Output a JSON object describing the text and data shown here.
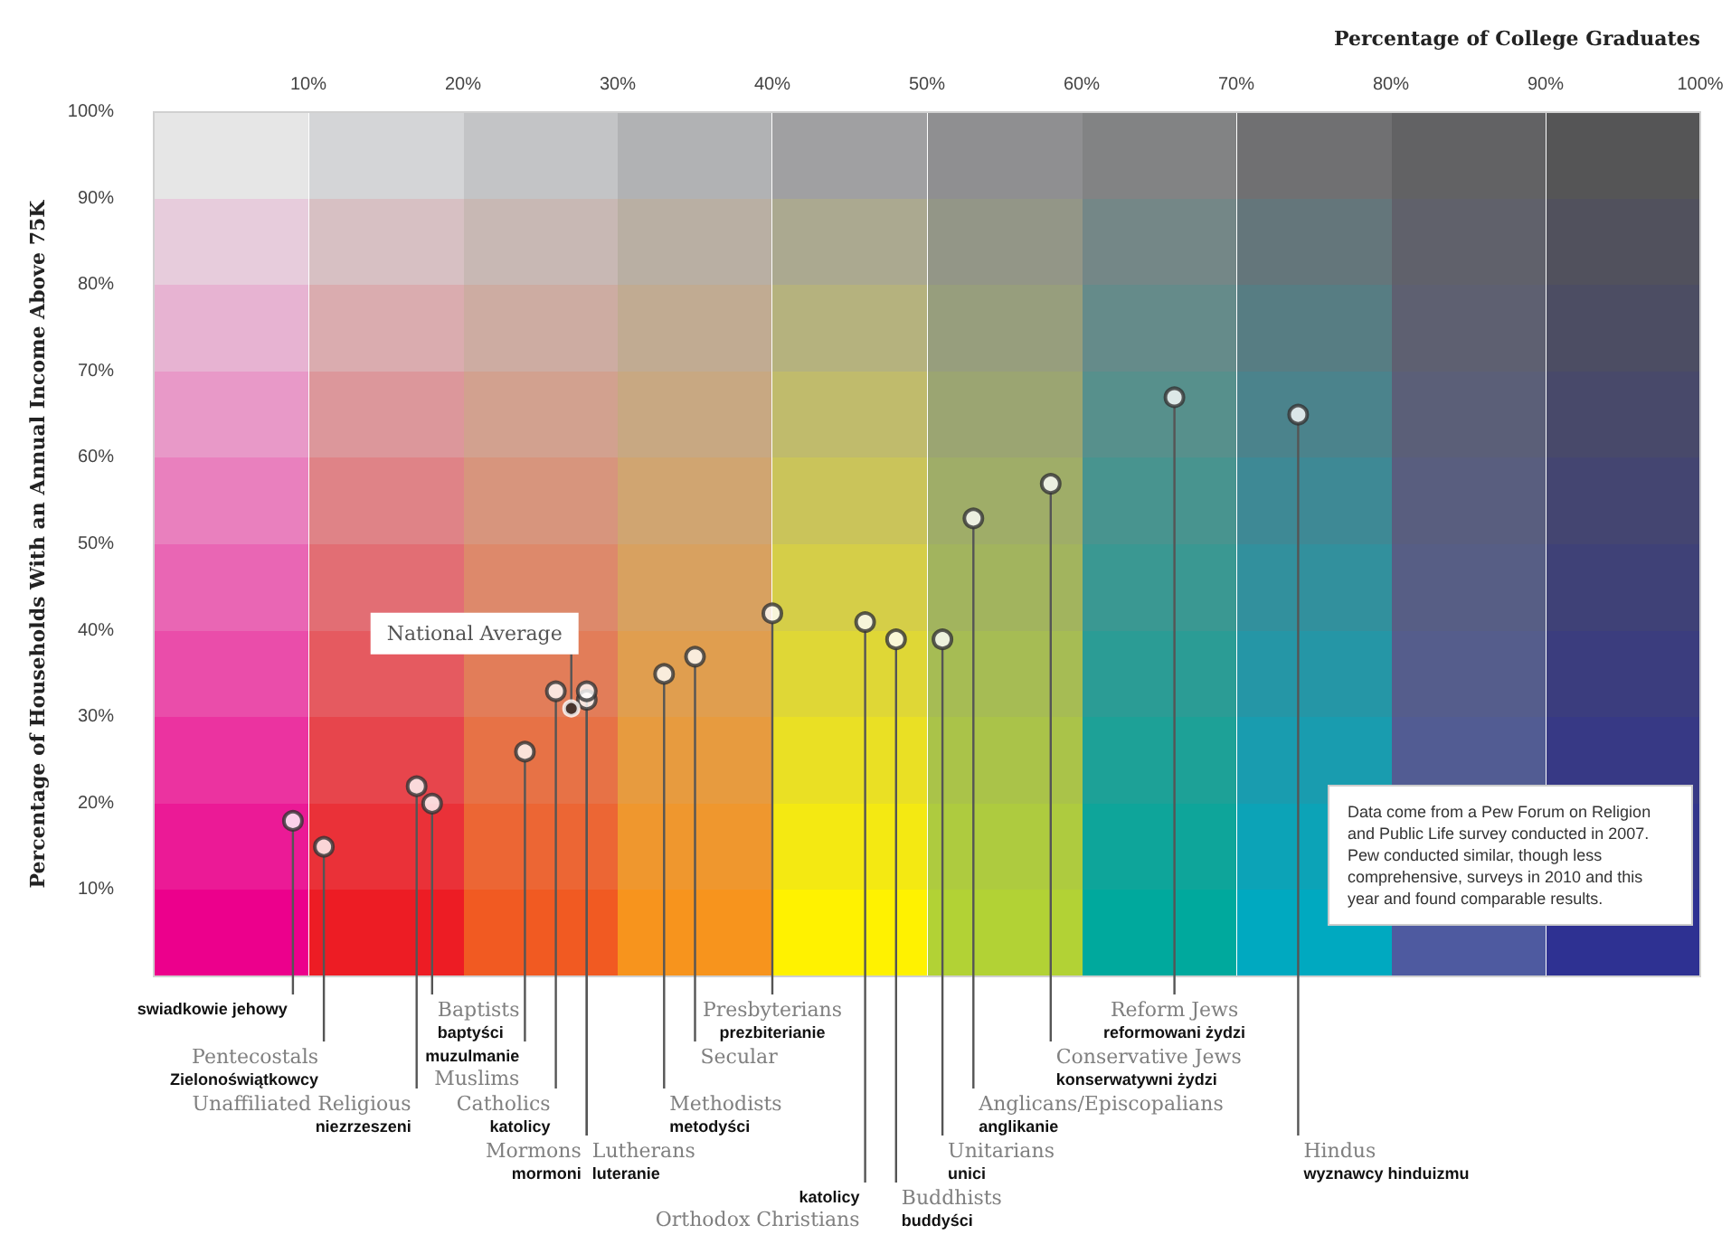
{
  "chart_data": {
    "type": "scatter",
    "xlabel": "Percentage of College Graduates",
    "ylabel": "Percentage of Households With an Annual Income Above 75K",
    "marker": "circle",
    "xlim": [
      0,
      100
    ],
    "ylim": [
      0,
      100
    ],
    "xticks": [
      {
        "value": 10,
        "label": "10%"
      },
      {
        "value": 20,
        "label": "20%"
      },
      {
        "value": 30,
        "label": "30%"
      },
      {
        "value": 40,
        "label": "40%"
      },
      {
        "value": 50,
        "label": "50%"
      },
      {
        "value": 60,
        "label": "60%"
      },
      {
        "value": 70,
        "label": "70%"
      },
      {
        "value": 80,
        "label": "80%"
      },
      {
        "value": 90,
        "label": "90%"
      },
      {
        "value": 100,
        "label": "100%"
      }
    ],
    "yticks": [
      {
        "value": 10,
        "label": "10%"
      },
      {
        "value": 20,
        "label": "20%"
      },
      {
        "value": 30,
        "label": "30%"
      },
      {
        "value": 40,
        "label": "40%"
      },
      {
        "value": 50,
        "label": "50%"
      },
      {
        "value": 60,
        "label": "60%"
      },
      {
        "value": 70,
        "label": "70%"
      },
      {
        "value": 80,
        "label": "80%"
      },
      {
        "value": 90,
        "label": "90%"
      },
      {
        "value": 100,
        "label": "100%"
      }
    ],
    "series": [
      {
        "color": "#ffffff",
        "x": [
          9,
          11,
          17,
          18,
          24,
          26,
          28,
          28,
          33,
          35,
          40,
          46,
          48,
          51,
          53,
          58,
          66,
          74
        ],
        "values": [
          18,
          15,
          22,
          20,
          26,
          33,
          32,
          33,
          35,
          37,
          42,
          41,
          39,
          39,
          53,
          57,
          67,
          65
        ]
      },
      {
        "name": "National Average",
        "color": "#222222",
        "x": [
          27
        ],
        "values": [
          31
        ]
      }
    ],
    "annotations": [
      {
        "text": "swiadkowie jehowy",
        "x": 9,
        "y": 18
      },
      {
        "text": "Pentecostals\nZielonoświątkowcy",
        "x": 11,
        "y": 15
      },
      {
        "text": "Unaffiliated Religious\nniezrzeszeni",
        "x": 17,
        "y": 22
      },
      {
        "text": "Baptists\nbaptyści",
        "x": 18,
        "y": 20
      },
      {
        "text": "muzulmanie\nMuslims",
        "x": 24,
        "y": 26
      },
      {
        "text": "Catholics\nkatolicy",
        "x": 26,
        "y": 33
      },
      {
        "text": "Mormons\nmormoni",
        "x": 28,
        "y": 32
      },
      {
        "text": "Lutherans\nluteranie",
        "x": 28,
        "y": 33
      },
      {
        "text": "Methodists\nmetodyści",
        "x": 33,
        "y": 35
      },
      {
        "text": "Secular",
        "x": 35,
        "y": 37
      },
      {
        "text": "Presbyterians\nprezbiterianie",
        "x": 40,
        "y": 42
      },
      {
        "text": "katolicy\nOrthodox Christians",
        "x": 46,
        "y": 41
      },
      {
        "text": "Buddhists\nbuddyści",
        "x": 48,
        "y": 39
      },
      {
        "text": "Unitarians\nunici",
        "x": 51,
        "y": 39
      },
      {
        "text": "Anglicans/Episcopalians\nanglikanie",
        "x": 53,
        "y": 53
      },
      {
        "text": "Conservative Jews\nkonserwatywni żydzi",
        "x": 58,
        "y": 57
      },
      {
        "text": "Reform Jews\nreformowani żydzi",
        "x": 66,
        "y": 67
      },
      {
        "text": "Hindus\nwyznawcy hinduizmu",
        "x": 74,
        "y": 65
      },
      "Data come from a Pew Forum on Religion and Public Life survey conducted in 2007. Pew conducted similar, though less comprehensive, surveys in 2010 and this year and found comparable results."
    ]
  }
}
